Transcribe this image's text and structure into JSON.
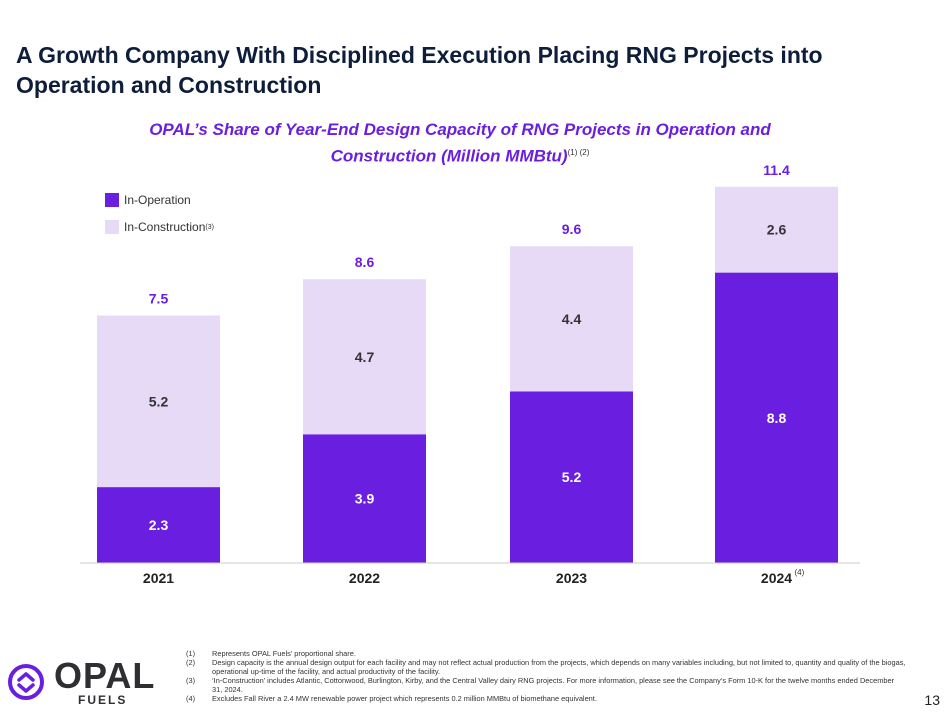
{
  "title": "A Growth Company With Disciplined Execution Placing RNG Projects into Operation and Construction",
  "subtitle": "OPAL’s Share of Year-End Design Capacity of RNG Projects in Operation and Construction (Million MMBtu)",
  "subtitle_sup": "(1) (2)",
  "chart_data": {
    "type": "bar",
    "stacked": true,
    "categories": [
      "2021",
      "2022",
      "2023",
      "2024"
    ],
    "category_sups": [
      "",
      "",
      "",
      "(4)"
    ],
    "series": [
      {
        "name": "In-Operation",
        "values": [
          2.3,
          3.9,
          5.2,
          8.8
        ],
        "color": "#6a1ee0"
      },
      {
        "name": "In-Construction",
        "name_sup": "(3)",
        "values": [
          5.2,
          4.7,
          4.4,
          2.6
        ],
        "color": "#e6daf6"
      }
    ],
    "totals": [
      7.5,
      8.6,
      9.6,
      11.4
    ],
    "ylim": [
      0,
      11.4
    ],
    "grid": false,
    "legend": "top-left"
  },
  "footnotes": [
    {
      "n": "(1)",
      "text": "Represents OPAL Fuels’ proportional share."
    },
    {
      "n": "(2)",
      "text": "Design capacity is the annual design output for each facility and may not reflect actual production from the projects, which depends on many variables including, but not limited to, quantity and quality of the biogas, operational up-time of the facility, and actual productivity of the facility."
    },
    {
      "n": "(3)",
      "text": "‘In-Construction’ includes Atlantic, Cottonwood, Burlington, Kirby, and the Central Valley dairy RNG projects. For more information, please see the Company’s Form 10-K for the twelve months ended December 31, 2024."
    },
    {
      "n": "(4)",
      "text": "Excludes Fall River a 2.4 MW renewable power project which represents 0.2 million MMBtu of biomethane equivalent."
    }
  ],
  "logo": {
    "name": "OPAL",
    "sub": "FUELS",
    "color": "#6a1ee0"
  },
  "page_number": "13"
}
